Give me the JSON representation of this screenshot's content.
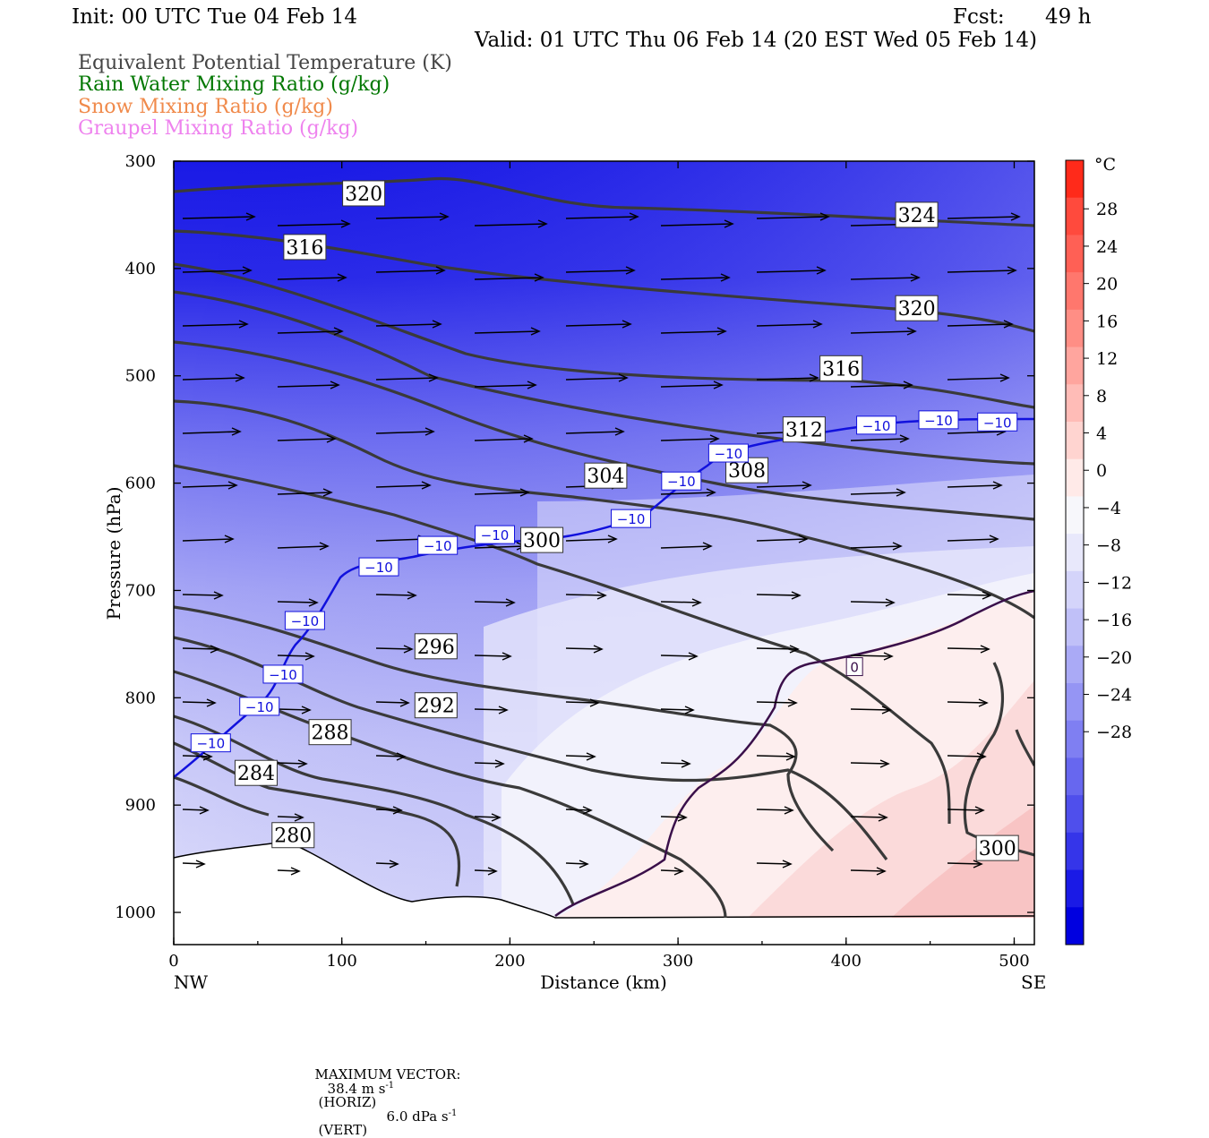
{
  "header": {
    "init": "Init: 00 UTC Tue 04 Feb 14",
    "fcst_label": "Fcst:",
    "fcst_value": "49 h",
    "valid": "Valid: 01 UTC Thu 06 Feb 14 (20 EST Wed 05 Feb 14)"
  },
  "legend": [
    {
      "label": "Equivalent Potential Temperature (K)",
      "color": "#444444"
    },
    {
      "label": "Rain Water Mixing Ratio (g/kg)",
      "color": "#007700"
    },
    {
      "label": "Snow Mixing Ratio (g/kg)",
      "color": "#f08a4b"
    },
    {
      "label": "Graupel Mixing Ratio (g/kg)",
      "color": "#ee82ee"
    }
  ],
  "chart_data": {
    "type": "heatmap",
    "xlabel": "Distance (km)",
    "ylabel": "Pressure (hPa)",
    "xlim": [
      0,
      512
    ],
    "ylim": [
      1030,
      300
    ],
    "x_ticks": [
      "0",
      "100",
      "200",
      "300",
      "400",
      "500"
    ],
    "y_ticks": [
      "300",
      "400",
      "500",
      "600",
      "700",
      "800",
      "900",
      "1000"
    ],
    "x_endpoints": [
      "NW",
      "SE"
    ],
    "colorbar": {
      "unit": "°C",
      "ticks": [
        "28",
        "24",
        "20",
        "16",
        "12",
        "8",
        "4",
        "0",
        "−4",
        "−8",
        "−12",
        "−16",
        "−20",
        "−24",
        "−28"
      ],
      "colors": [
        "#ff2a1a",
        "#ff4a3d",
        "#ff6055",
        "#ff776d",
        "#ff8e85",
        "#ffa59e",
        "#ffbcb7",
        "#ffd4d0",
        "#ffeae8",
        "#f7f7fb",
        "#e8e8fb",
        "#d4d4fa",
        "#c0c0f8",
        "#aaaaf6",
        "#9595f4",
        "#7f7ff2",
        "#6767ef",
        "#4f4fec",
        "#3535e9",
        "#1a1ae6",
        "#0000e0"
      ]
    },
    "theta_e_labels": [
      {
        "text": "320",
        "x": 113,
        "p": 330
      },
      {
        "text": "316",
        "x": 78,
        "p": 380
      },
      {
        "text": "324",
        "x": 442,
        "p": 350
      },
      {
        "text": "320",
        "x": 442,
        "p": 437
      },
      {
        "text": "316",
        "x": 397,
        "p": 493
      },
      {
        "text": "312",
        "x": 375,
        "p": 550
      },
      {
        "text": "308",
        "x": 341,
        "p": 588
      },
      {
        "text": "304",
        "x": 257,
        "p": 593
      },
      {
        "text": "300",
        "x": 219,
        "p": 653
      },
      {
        "text": "296",
        "x": 156,
        "p": 752
      },
      {
        "text": "292",
        "x": 156,
        "p": 807
      },
      {
        "text": "288",
        "x": 93,
        "p": 832
      },
      {
        "text": "284",
        "x": 49,
        "p": 870
      },
      {
        "text": "280",
        "x": 71,
        "p": 928
      },
      {
        "text": "300",
        "x": 490,
        "p": 940
      }
    ],
    "temp_labels": [
      {
        "text": "−10",
        "x": 22,
        "p": 842
      },
      {
        "text": "−10",
        "x": 51,
        "p": 808
      },
      {
        "text": "−10",
        "x": 65,
        "p": 778
      },
      {
        "text": "−10",
        "x": 78,
        "p": 728
      },
      {
        "text": "−10",
        "x": 122,
        "p": 678
      },
      {
        "text": "−10",
        "x": 157,
        "p": 658
      },
      {
        "text": "−10",
        "x": 191,
        "p": 648
      },
      {
        "text": "−10",
        "x": 272,
        "p": 633
      },
      {
        "text": "−10",
        "x": 302,
        "p": 598
      },
      {
        "text": "−10",
        "x": 330,
        "p": 572
      },
      {
        "text": "−10",
        "x": 418,
        "p": 546
      },
      {
        "text": "−10",
        "x": 455,
        "p": 541
      },
      {
        "text": "−10",
        "x": 490,
        "p": 543
      },
      {
        "text": "0",
        "x": 405,
        "p": 771
      }
    ]
  },
  "footer": {
    "max_vector_label": "MAXIMUM VECTOR:",
    "horiz_value": "38.4 m s",
    "horiz_exp": "-1",
    "horiz_tag": "(HORIZ)",
    "vert_value": "6.0 dPa s",
    "vert_exp": "-1",
    "vert_tag": "(VERT)"
  }
}
